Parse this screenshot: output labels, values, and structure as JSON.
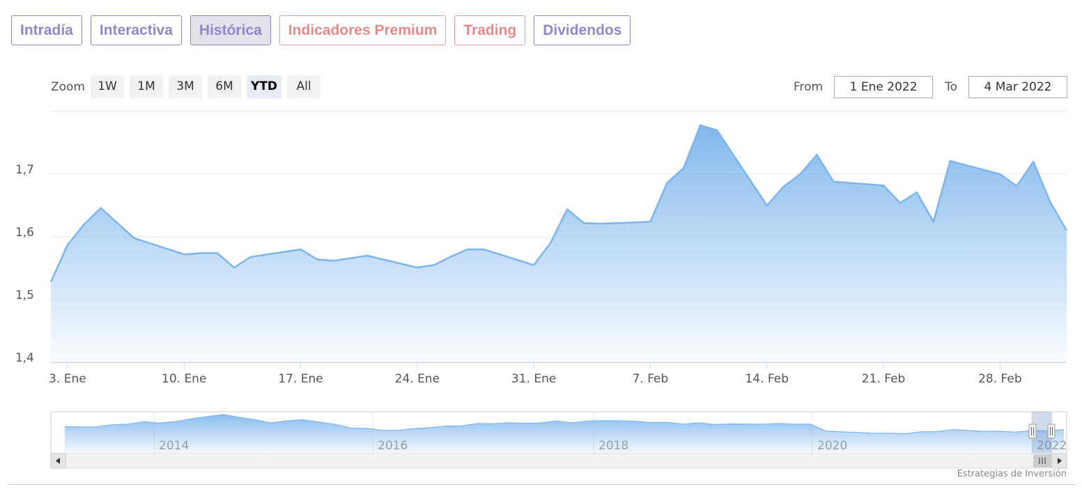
{
  "tabs": [
    {
      "label": "Intradía",
      "style": "normal"
    },
    {
      "label": "Interactiva",
      "style": "normal"
    },
    {
      "label": "Histórica",
      "style": "active"
    },
    {
      "label": "Indicadores Premium",
      "style": "premium"
    },
    {
      "label": "Trading",
      "style": "premium"
    },
    {
      "label": "Dividendos",
      "style": "normal"
    }
  ],
  "range_selector": {
    "zoom_label": "Zoom",
    "buttons": [
      "1W",
      "1M",
      "3M",
      "6M",
      "YTD",
      "All"
    ],
    "selected": "YTD",
    "from_label": "From",
    "from_value": "1 Ene 2022",
    "to_label": "To",
    "to_value": "4 Mar 2022"
  },
  "chart_data": {
    "type": "area",
    "title": "",
    "xlabel": "",
    "ylabel": "",
    "x_tick_labels": [
      "3. Ene",
      "10. Ene",
      "17. Ene",
      "24. Ene",
      "31. Ene",
      "7. Feb",
      "14. Feb",
      "21. Feb",
      "28. Feb"
    ],
    "y_tick_labels": [
      "1,4",
      "1,5",
      "1,6",
      "1,7"
    ],
    "ylim": [
      1.4,
      1.8
    ],
    "grid": true,
    "x": [
      "2022-01-02",
      "2022-01-03",
      "2022-01-04",
      "2022-01-05",
      "2022-01-06",
      "2022-01-07",
      "2022-01-10",
      "2022-01-11",
      "2022-01-12",
      "2022-01-13",
      "2022-01-14",
      "2022-01-17",
      "2022-01-18",
      "2022-01-19",
      "2022-01-20",
      "2022-01-21",
      "2022-01-24",
      "2022-01-25",
      "2022-01-26",
      "2022-01-27",
      "2022-01-28",
      "2022-01-31",
      "2022-02-01",
      "2022-02-02",
      "2022-02-03",
      "2022-02-04",
      "2022-02-07",
      "2022-02-08",
      "2022-02-09",
      "2022-02-10",
      "2022-02-11",
      "2022-02-14",
      "2022-02-15",
      "2022-02-16",
      "2022-02-17",
      "2022-02-18",
      "2022-02-21",
      "2022-02-22",
      "2022-02-23",
      "2022-02-24",
      "2022-02-25",
      "2022-02-28",
      "2022-03-01",
      "2022-03-02",
      "2022-03-03",
      "2022-03-04"
    ],
    "series": [
      {
        "values": [
          1.528,
          1.587,
          1.62,
          1.646,
          1.622,
          1.598,
          1.572,
          1.574,
          1.574,
          1.551,
          1.568,
          1.58,
          1.564,
          1.562,
          1.566,
          1.57,
          1.551,
          1.555,
          1.568,
          1.58,
          1.58,
          1.555,
          1.59,
          1.644,
          1.622,
          1.621,
          1.624,
          1.686,
          1.71,
          1.778,
          1.77,
          1.65,
          1.68,
          1.7,
          1.731,
          1.688,
          1.682,
          1.654,
          1.671,
          1.624,
          1.721,
          1.7,
          1.681,
          1.72,
          1.656,
          1.61
        ],
        "color": "#7cb5ec"
      }
    ]
  },
  "navigator": {
    "year_labels": [
      "2014",
      "2016",
      "2018",
      "2020",
      "2022"
    ],
    "history": [
      0.62,
      0.6,
      0.63,
      0.66,
      0.72,
      0.76,
      0.74,
      0.78,
      0.86,
      0.95,
      0.98,
      0.93,
      0.82,
      0.75,
      0.8,
      0.83,
      0.78,
      0.68,
      0.6,
      0.55,
      0.52,
      0.5,
      0.55,
      0.6,
      0.62,
      0.66,
      0.7,
      0.72,
      0.74,
      0.72,
      0.75,
      0.78,
      0.76,
      0.78,
      0.82,
      0.8,
      0.78,
      0.76,
      0.74,
      0.72,
      0.72,
      0.7,
      0.7,
      0.7,
      0.71,
      0.7,
      0.72,
      0.68,
      0.5,
      0.45,
      0.44,
      0.42,
      0.4,
      0.42,
      0.44,
      0.48,
      0.52,
      0.5,
      0.48,
      0.46,
      0.47,
      0.48,
      0.5,
      0.52
    ]
  },
  "credit": "Estrategias de Inversión"
}
